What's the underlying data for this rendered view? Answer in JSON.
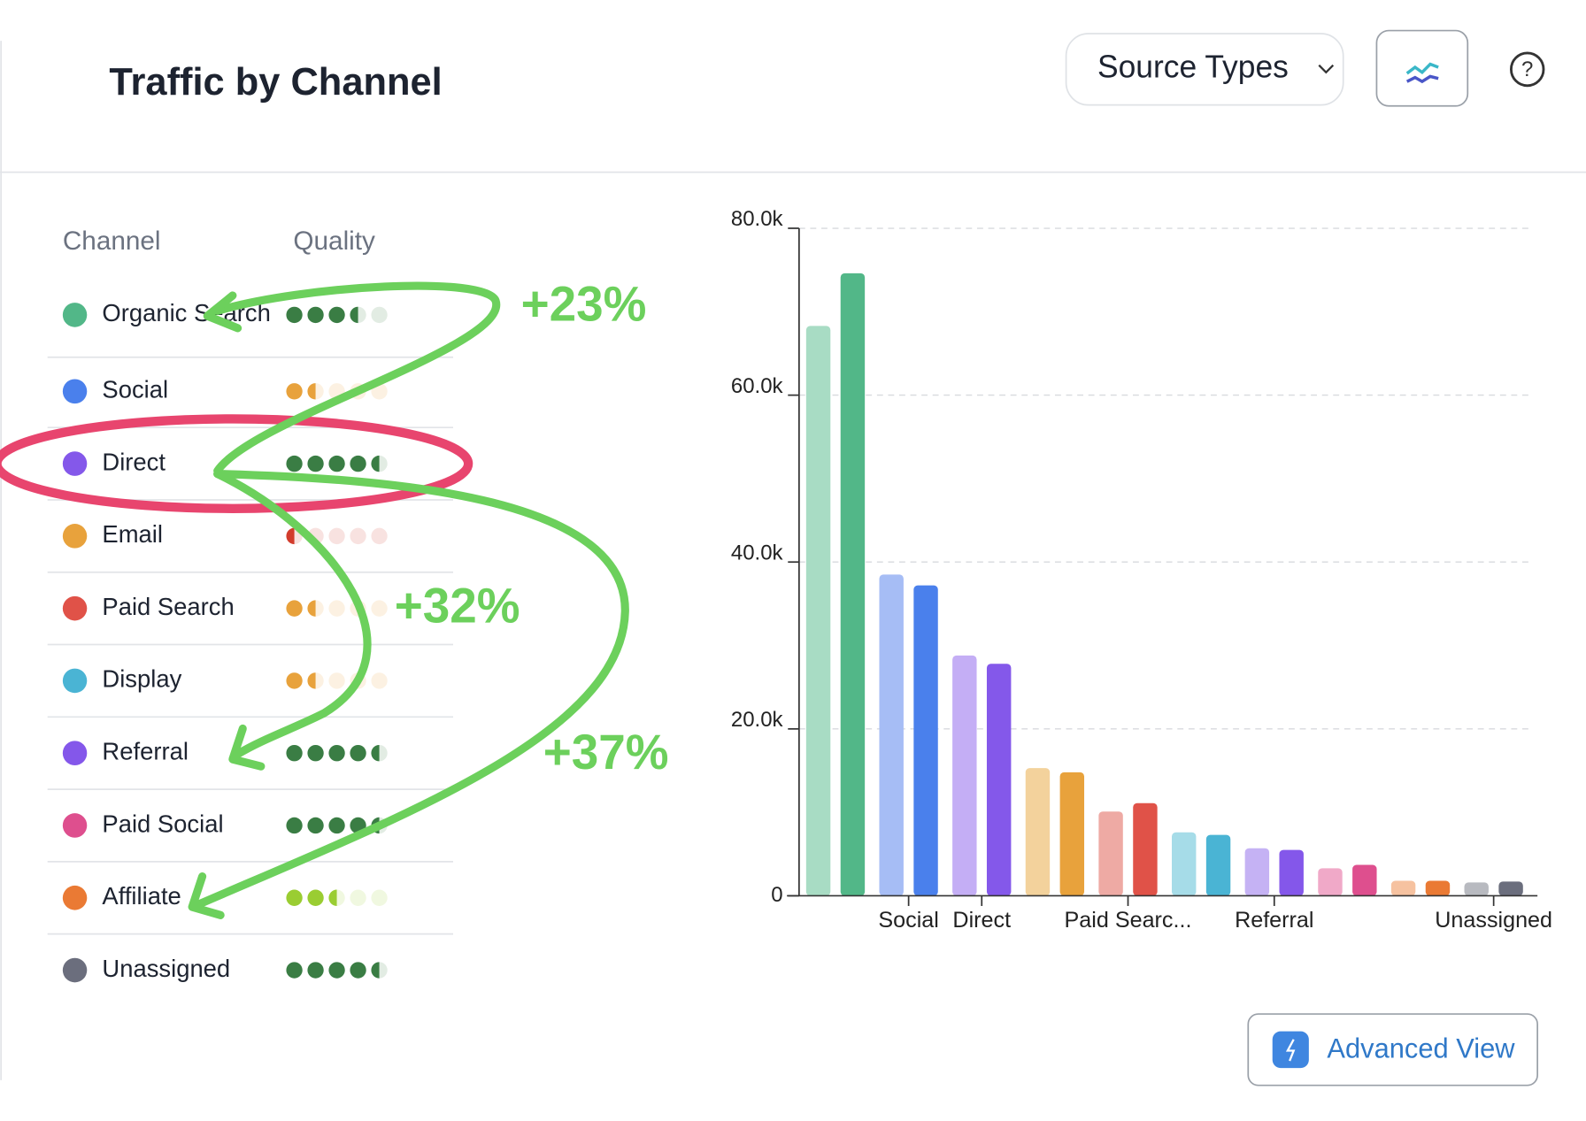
{
  "header": {
    "title": "Traffic by Channel",
    "dropdown": "Source Types",
    "button": "Advanced View"
  },
  "table": {
    "columns": [
      "Channel",
      "Quality"
    ],
    "rows": [
      {
        "channel": "Organic Search",
        "color": "#52b788",
        "quality": 3.5,
        "quality_color": "#3a7d44"
      },
      {
        "channel": "Social",
        "color": "#4a80ec",
        "quality": 1.5,
        "quality_color": "#e8a23c"
      },
      {
        "channel": "Direct",
        "color": "#8458ea",
        "quality": 4.5,
        "quality_color": "#3a7d44"
      },
      {
        "channel": "Email",
        "color": "#e8a23c",
        "quality": 0.5,
        "quality_color": "#d23c2c"
      },
      {
        "channel": "Paid Search",
        "color": "#e05248",
        "quality": 1.5,
        "quality_color": "#e8a23c"
      },
      {
        "channel": "Display",
        "color": "#4ab4d4",
        "quality": 1.5,
        "quality_color": "#e8a23c"
      },
      {
        "channel": "Referral",
        "color": "#8457ea",
        "quality": 4.5,
        "quality_color": "#3a7d44"
      },
      {
        "channel": "Paid Social",
        "color": "#de4f8e",
        "quality": 4.5,
        "quality_color": "#3a7d44"
      },
      {
        "channel": "Affiliate",
        "color": "#ea7a34",
        "quality": 2.5,
        "quality_color": "#9acd32"
      },
      {
        "channel": "Unassigned",
        "color": "#6b6e7d",
        "quality": 4.5,
        "quality_color": "#3a7d44"
      }
    ]
  },
  "annotations": [
    "+23%",
    "+32%",
    "+37%"
  ],
  "chart_data": {
    "type": "bar",
    "categories": [
      null,
      "Social",
      "Direct",
      null,
      "Paid Searc...",
      null,
      "Referral",
      null,
      null,
      "Unassigned"
    ],
    "series": [
      {
        "colors": [
          "#a8dcc4",
          "#a6bdf5",
          "#c4aef5",
          "#f3d29c",
          "#eeaaa4",
          "#a6dce8",
          "#c5b2f4",
          "#f0a9c8",
          "#f6c2a0",
          "#b8bac0"
        ],
        "values": [
          68300,
          38500,
          28800,
          15300,
          10100,
          7600,
          5700,
          3300,
          1800,
          1600
        ]
      },
      {
        "colors": [
          "#52b788",
          "#4a80ec",
          "#8458ea",
          "#e8a23c",
          "#e05248",
          "#4ab4d4",
          "#8457ea",
          "#de4f8e",
          "#ea7a34",
          "#6b6e7d"
        ],
        "values": [
          74600,
          37200,
          27800,
          14800,
          11100,
          7300,
          5500,
          3700,
          1800,
          1700
        ]
      }
    ],
    "ylim": [
      0,
      80000
    ],
    "yticks": [
      0,
      {
        "value": 20000,
        "label": "20.0k"
      },
      {
        "value": 40000,
        "label": "40.0k"
      },
      {
        "value": 60000,
        "label": "60.0k"
      },
      {
        "value": 80000,
        "label": "80.0k"
      }
    ],
    "grid": true
  }
}
